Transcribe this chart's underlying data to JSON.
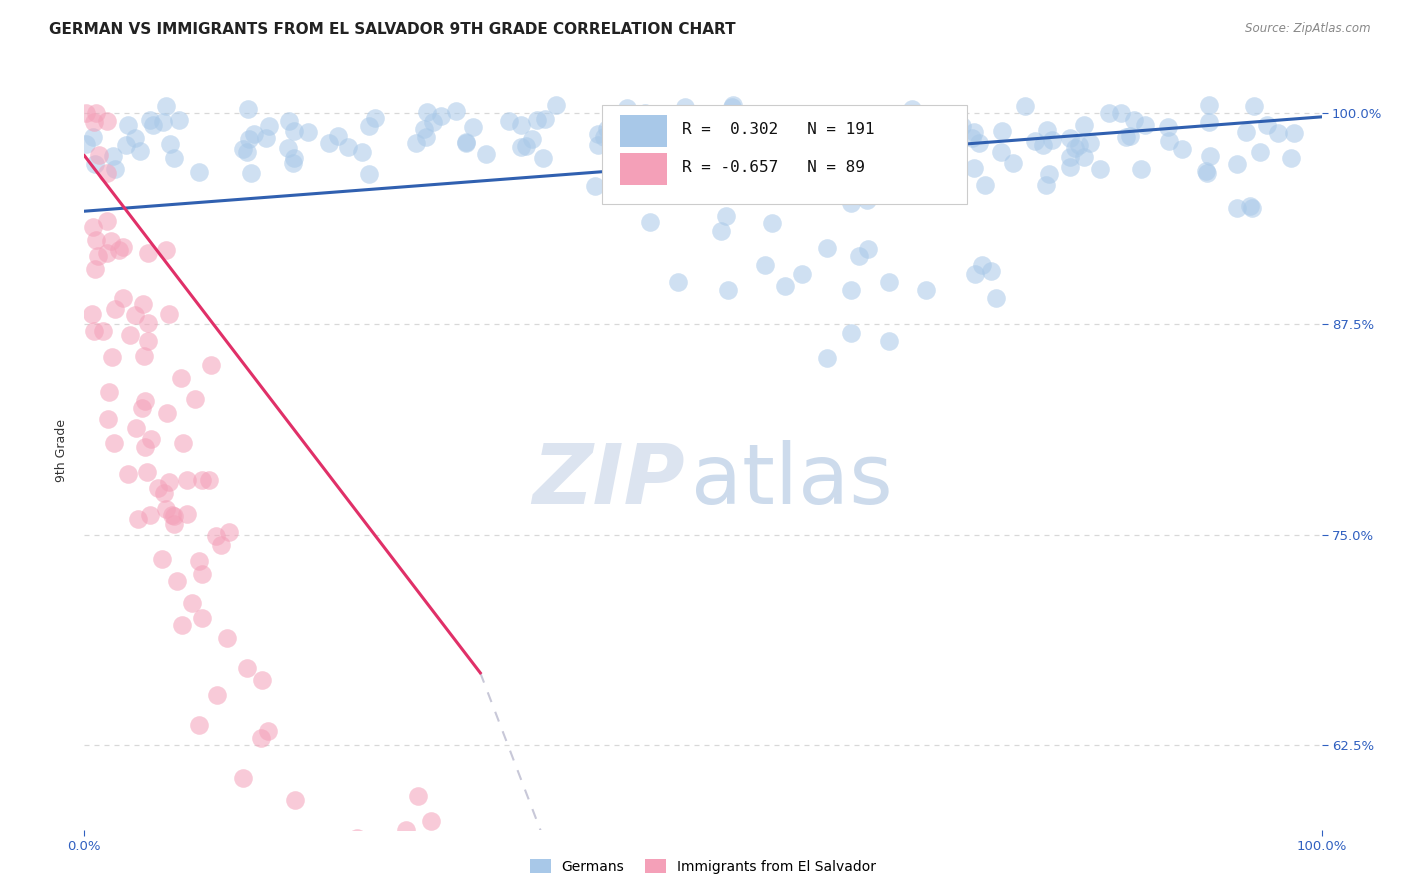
{
  "title": "GERMAN VS IMMIGRANTS FROM EL SALVADOR 9TH GRADE CORRELATION CHART",
  "source": "Source: ZipAtlas.com",
  "ylabel": "9th Grade",
  "blue_R": 0.302,
  "blue_N": 191,
  "pink_R": -0.657,
  "pink_N": 89,
  "blue_color": "#a8c8e8",
  "pink_color": "#f4a0b8",
  "blue_line_color": "#3060b0",
  "pink_line_color": "#e03068",
  "ytick_labels": [
    "62.5%",
    "75.0%",
    "87.5%",
    "100.0%"
  ],
  "ytick_values": [
    0.625,
    0.75,
    0.875,
    1.0
  ],
  "background_color": "#ffffff",
  "grid_color": "#d8d8d8",
  "title_color": "#222222",
  "source_color": "#888888",
  "axis_tick_color": "#3060c0"
}
